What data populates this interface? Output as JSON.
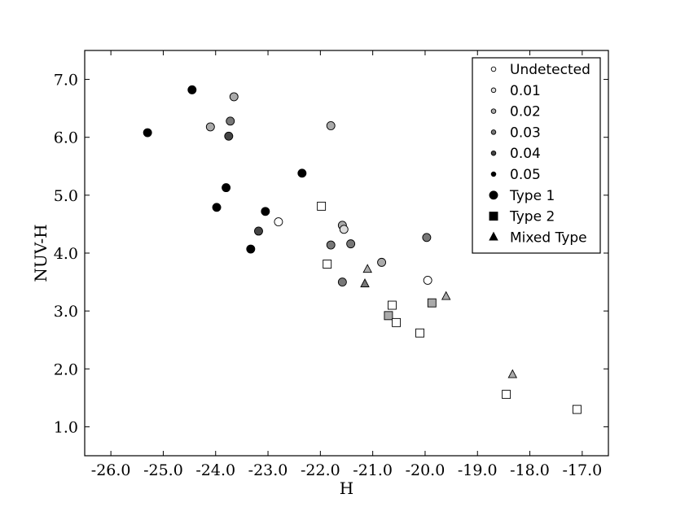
{
  "chart_data": {
    "type": "scatter",
    "xlabel": "H",
    "ylabel": "NUV-H",
    "xlim": [
      -26.5,
      -16.5
    ],
    "ylim": [
      0.5,
      7.5
    ],
    "xticks": [
      -26.0,
      -25.0,
      -24.0,
      -23.0,
      -22.0,
      -21.0,
      -20.0,
      -19.0,
      -18.0,
      -17.0
    ],
    "xtick_labels": [
      "-26.0",
      "-25.0",
      "-24.0",
      "-23.0",
      "-22.0",
      "-21.0",
      "-20.0",
      "-19.0",
      "-18.0",
      "-17.0"
    ],
    "yticks": [
      1.0,
      2.0,
      3.0,
      4.0,
      5.0,
      6.0,
      7.0
    ],
    "ytick_labels": [
      "1.0",
      "2.0",
      "3.0",
      "4.0",
      "5.0",
      "6.0",
      "7.0"
    ],
    "grid": false,
    "legend_position": "top-right",
    "legend": [
      {
        "label": "Undetected",
        "marker": "circle",
        "fill": "#ffffff",
        "size": "small"
      },
      {
        "label": "0.01",
        "marker": "circle",
        "fill": "#dddddd",
        "size": "small"
      },
      {
        "label": "0.02",
        "marker": "circle",
        "fill": "#aaaaaa",
        "size": "small"
      },
      {
        "label": "0.03",
        "marker": "circle",
        "fill": "#777777",
        "size": "small"
      },
      {
        "label": "0.04",
        "marker": "circle",
        "fill": "#444444",
        "size": "small"
      },
      {
        "label": "0.05",
        "marker": "circle",
        "fill": "#000000",
        "size": "small"
      },
      {
        "label": "Type 1",
        "marker": "circle",
        "fill": "#000000",
        "size": "large"
      },
      {
        "label": "Type 2",
        "marker": "square",
        "fill": "#000000",
        "size": "large"
      },
      {
        "label": "Mixed Type",
        "marker": "triangle",
        "fill": "#000000",
        "size": "large"
      }
    ],
    "points": [
      {
        "x": -25.3,
        "y": 6.08,
        "marker": "circle",
        "fill": "#000000"
      },
      {
        "x": -24.45,
        "y": 6.82,
        "marker": "circle",
        "fill": "#000000"
      },
      {
        "x": -24.1,
        "y": 6.18,
        "marker": "circle",
        "fill": "#aaaaaa"
      },
      {
        "x": -23.65,
        "y": 6.7,
        "marker": "circle",
        "fill": "#aaaaaa"
      },
      {
        "x": -23.72,
        "y": 6.28,
        "marker": "circle",
        "fill": "#777777"
      },
      {
        "x": -23.75,
        "y": 6.02,
        "marker": "circle",
        "fill": "#444444"
      },
      {
        "x": -23.8,
        "y": 5.13,
        "marker": "circle",
        "fill": "#000000"
      },
      {
        "x": -23.98,
        "y": 4.79,
        "marker": "circle",
        "fill": "#000000"
      },
      {
        "x": -23.05,
        "y": 4.72,
        "marker": "circle",
        "fill": "#000000"
      },
      {
        "x": -23.18,
        "y": 4.38,
        "marker": "circle",
        "fill": "#444444"
      },
      {
        "x": -23.33,
        "y": 4.07,
        "marker": "circle",
        "fill": "#000000"
      },
      {
        "x": -22.35,
        "y": 5.38,
        "marker": "circle",
        "fill": "#000000"
      },
      {
        "x": -21.8,
        "y": 6.2,
        "marker": "circle",
        "fill": "#aaaaaa"
      },
      {
        "x": -22.8,
        "y": 4.54,
        "marker": "circle",
        "fill": "#ffffff"
      },
      {
        "x": -21.58,
        "y": 4.48,
        "marker": "circle",
        "fill": "#aaaaaa"
      },
      {
        "x": -21.55,
        "y": 4.41,
        "marker": "circle",
        "fill": "#dddddd"
      },
      {
        "x": -21.8,
        "y": 4.14,
        "marker": "circle",
        "fill": "#777777"
      },
      {
        "x": -21.42,
        "y": 4.16,
        "marker": "circle",
        "fill": "#777777"
      },
      {
        "x": -20.83,
        "y": 3.84,
        "marker": "circle",
        "fill": "#aaaaaa"
      },
      {
        "x": -21.58,
        "y": 3.5,
        "marker": "circle",
        "fill": "#777777"
      },
      {
        "x": -19.97,
        "y": 4.27,
        "marker": "circle",
        "fill": "#777777"
      },
      {
        "x": -19.95,
        "y": 3.53,
        "marker": "circle",
        "fill": "#ffffff"
      },
      {
        "x": -21.98,
        "y": 4.81,
        "marker": "square",
        "fill": "#ffffff"
      },
      {
        "x": -21.87,
        "y": 3.81,
        "marker": "square",
        "fill": "#ffffff"
      },
      {
        "x": -20.63,
        "y": 3.1,
        "marker": "square",
        "fill": "#ffffff"
      },
      {
        "x": -20.7,
        "y": 2.92,
        "marker": "square",
        "fill": "#aaaaaa"
      },
      {
        "x": -20.55,
        "y": 2.8,
        "marker": "square",
        "fill": "#ffffff"
      },
      {
        "x": -19.87,
        "y": 3.14,
        "marker": "square",
        "fill": "#aaaaaa"
      },
      {
        "x": -20.1,
        "y": 2.62,
        "marker": "square",
        "fill": "#ffffff"
      },
      {
        "x": -18.45,
        "y": 1.56,
        "marker": "square",
        "fill": "#ffffff"
      },
      {
        "x": -17.1,
        "y": 1.3,
        "marker": "square",
        "fill": "#ffffff"
      },
      {
        "x": -21.1,
        "y": 3.72,
        "marker": "triangle",
        "fill": "#aaaaaa"
      },
      {
        "x": -21.15,
        "y": 3.47,
        "marker": "triangle",
        "fill": "#777777"
      },
      {
        "x": -19.6,
        "y": 3.25,
        "marker": "triangle",
        "fill": "#aaaaaa"
      },
      {
        "x": -18.33,
        "y": 1.9,
        "marker": "triangle",
        "fill": "#aaaaaa"
      }
    ]
  }
}
